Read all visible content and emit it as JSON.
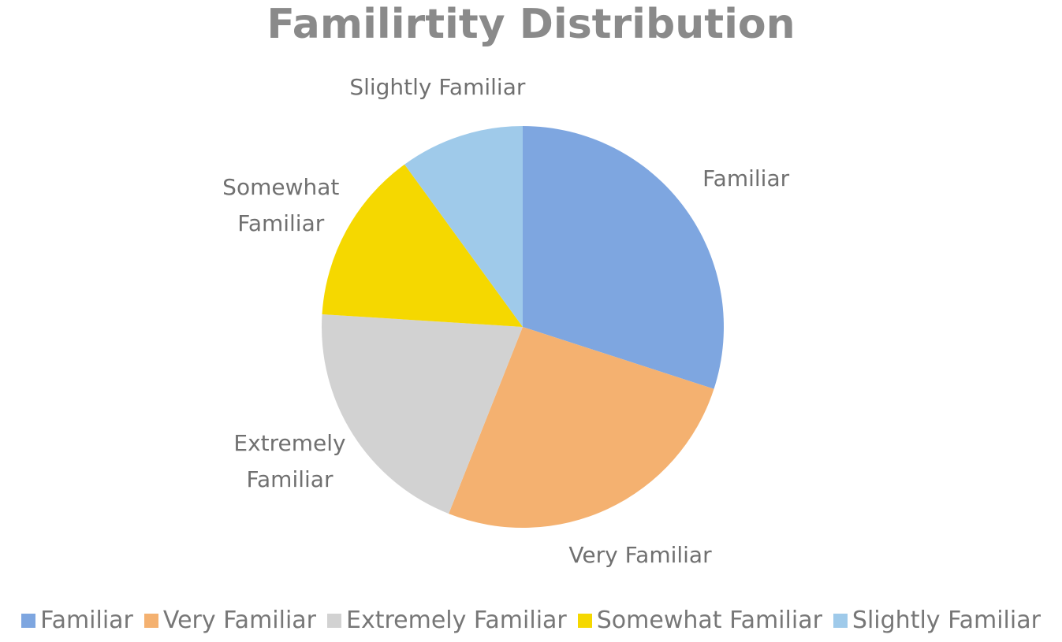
{
  "chart_data": {
    "type": "pie",
    "title": "Familirtity Distribution",
    "categories": [
      "Familiar",
      "Very Familiar",
      "Extremely Familiar",
      "Somewhat Familiar",
      "Slightly Familiar"
    ],
    "values": [
      30,
      26,
      20,
      14,
      10
    ],
    "colors": [
      "#7ea6e0",
      "#f4b170",
      "#d2d2d2",
      "#f5d800",
      "#9fcaea"
    ],
    "legend": "bottom"
  }
}
